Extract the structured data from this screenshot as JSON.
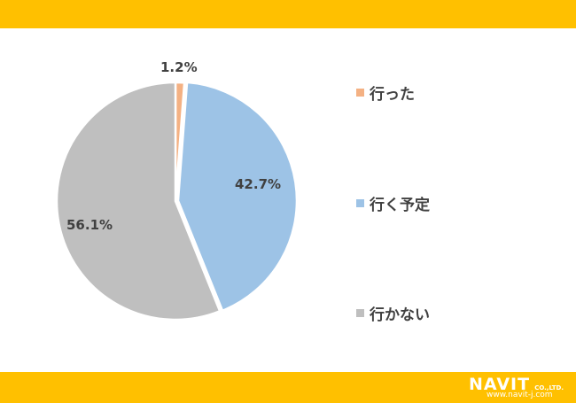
{
  "chart_data": {
    "type": "pie",
    "categories": [
      "行った",
      "行く予定",
      "行かない"
    ],
    "values": [
      1.2,
      42.7,
      56.1
    ],
    "data_labels": [
      "1.2%",
      "42.7%",
      "56.1%"
    ],
    "colors": [
      "#F4B183",
      "#9DC3E6",
      "#BFBFBF"
    ],
    "start": "top",
    "direction": "clockwise",
    "legend": "right"
  },
  "brand": {
    "logo_text": "NAVIT",
    "co": "CO.,LTD.",
    "url": "www.navit-j.com",
    "color": "#FFC000"
  }
}
